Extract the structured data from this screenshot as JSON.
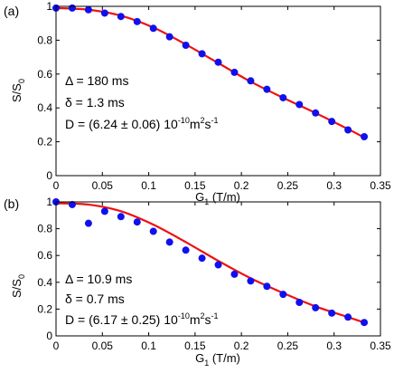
{
  "chart_data": [
    {
      "type": "scatter",
      "panel_label": "(a)",
      "xlabel": "G",
      "xlabel_sub": "1",
      "xlabel_unit": " (T/m)",
      "ylabel": "S/S",
      "ylabel_sub": "0",
      "xlim": [
        0,
        0.35
      ],
      "ylim": [
        0,
        1
      ],
      "xticks": [
        0,
        0.05,
        0.1,
        0.15,
        0.2,
        0.25,
        0.3,
        0.35
      ],
      "xtick_labels": [
        "0",
        "0.05",
        "0.1",
        "0.15",
        "0.2",
        "0.25",
        "0.3",
        "0.35"
      ],
      "yticks": [
        0,
        0.2,
        0.4,
        0.6,
        0.8,
        1
      ],
      "ytick_labels": [
        "0",
        "0.2",
        "0.4",
        "0.6",
        "0.8",
        "1"
      ],
      "annotations": {
        "line1": "Δ = 180 ms",
        "line2": "δ = 1.3 ms",
        "line3_main": "D = (6.24 ± 0.06) 10",
        "line3_exp": "-10",
        "line3_unit": "m",
        "line3_unit_exp": "2",
        "line3_s": "s",
        "line3_s_exp": "-1"
      },
      "points_color": "#1010ee",
      "fit_color": "#ee1111",
      "points": {
        "x": [
          0,
          0.0175,
          0.035,
          0.0525,
          0.07,
          0.0875,
          0.105,
          0.1225,
          0.14,
          0.1575,
          0.175,
          0.1925,
          0.21,
          0.2275,
          0.245,
          0.2625,
          0.28,
          0.2975,
          0.315,
          0.3325
        ],
        "y": [
          0.99,
          0.99,
          0.98,
          0.96,
          0.94,
          0.91,
          0.87,
          0.82,
          0.77,
          0.72,
          0.67,
          0.61,
          0.56,
          0.51,
          0.46,
          0.42,
          0.37,
          0.32,
          0.27,
          0.23
        ]
      },
      "fit": {
        "x": [
          0,
          0.035,
          0.07,
          0.105,
          0.14,
          0.175,
          0.21,
          0.245,
          0.28,
          0.315,
          0.3325
        ],
        "y": [
          0.99,
          0.98,
          0.945,
          0.875,
          0.775,
          0.665,
          0.555,
          0.46,
          0.37,
          0.275,
          0.225
        ]
      }
    },
    {
      "type": "scatter",
      "panel_label": "(b)",
      "xlabel": "G",
      "xlabel_sub": "1",
      "xlabel_unit": " (T/m)",
      "ylabel": "S/S",
      "ylabel_sub": "0",
      "xlim": [
        0,
        0.35
      ],
      "ylim": [
        0,
        1
      ],
      "xticks": [
        0,
        0.05,
        0.1,
        0.15,
        0.2,
        0.25,
        0.3,
        0.35
      ],
      "xtick_labels": [
        "0",
        "0.05",
        "0.1",
        "0.15",
        "0.2",
        "0.25",
        "0.3",
        "0.35"
      ],
      "yticks": [
        0,
        0.2,
        0.4,
        0.6,
        0.8,
        1
      ],
      "ytick_labels": [
        "0",
        "0.2",
        "0.4",
        "0.6",
        "0.8",
        "1"
      ],
      "annotations": {
        "line1": "Δ = 10.9 ms",
        "line2": "δ = 0.7 ms",
        "line3_main": "D = (6.17 ± 0.25) 10",
        "line3_exp": "-10",
        "line3_unit": "m",
        "line3_unit_exp": "2",
        "line3_s": "s",
        "line3_s_exp": "-1"
      },
      "points_color": "#1010ee",
      "fit_color": "#ee1111",
      "points": {
        "x": [
          0,
          0.0175,
          0.035,
          0.0525,
          0.07,
          0.0875,
          0.105,
          0.1225,
          0.14,
          0.1575,
          0.175,
          0.1925,
          0.21,
          0.2275,
          0.245,
          0.2625,
          0.28,
          0.2975,
          0.315,
          0.3325
        ],
        "y": [
          1.0,
          0.98,
          0.84,
          0.93,
          0.89,
          0.85,
          0.78,
          0.7,
          0.64,
          0.58,
          0.53,
          0.46,
          0.41,
          0.37,
          0.31,
          0.25,
          0.21,
          0.17,
          0.14,
          0.1
        ]
      },
      "fit": {
        "x": [
          0,
          0.035,
          0.07,
          0.105,
          0.14,
          0.175,
          0.21,
          0.245,
          0.28,
          0.315,
          0.3325
        ],
        "y": [
          0.99,
          0.98,
          0.93,
          0.83,
          0.7,
          0.56,
          0.43,
          0.32,
          0.22,
          0.14,
          0.1
        ]
      }
    }
  ]
}
